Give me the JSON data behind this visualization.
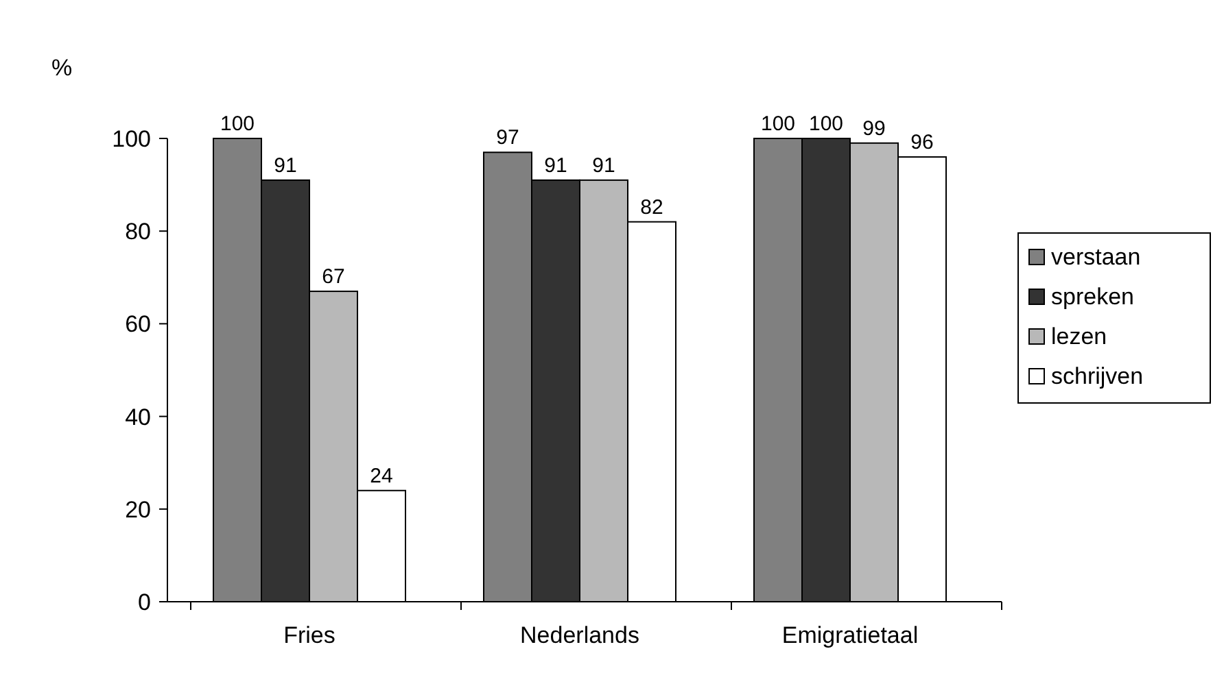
{
  "chart_data": {
    "type": "bar",
    "ylabel": "%",
    "categories": [
      "Fries",
      "Nederlands",
      "Emigratietaal"
    ],
    "series": [
      {
        "name": "verstaan",
        "color": "#808080",
        "values": [
          100,
          97,
          100
        ]
      },
      {
        "name": "spreken",
        "color": "#333333",
        "values": [
          91,
          91,
          100
        ]
      },
      {
        "name": "lezen",
        "color": "#b8b8b8",
        "values": [
          67,
          91,
          99
        ]
      },
      {
        "name": "schrijven",
        "color": "#ffffff",
        "values": [
          24,
          82,
          96
        ]
      }
    ],
    "ylim": [
      0,
      100
    ],
    "yticks": [
      0,
      20,
      40,
      60,
      80,
      100
    ],
    "data_labels": true,
    "legend": "right",
    "grid": false
  }
}
